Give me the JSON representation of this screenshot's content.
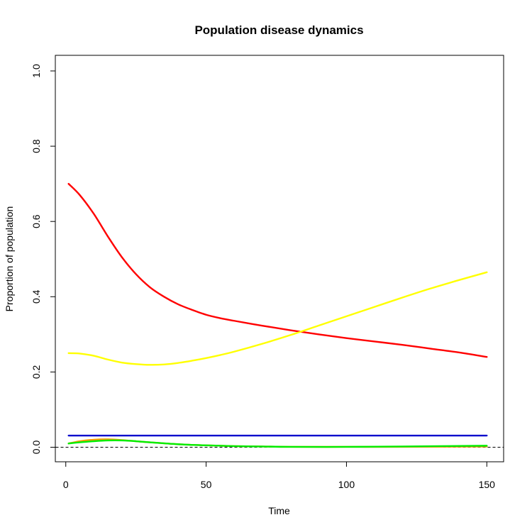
{
  "chart_data": {
    "type": "line",
    "title": "Population disease dynamics",
    "xlabel": "Time",
    "ylabel": "Proportion of population",
    "xlim": [
      1,
      150
    ],
    "ylim": [
      0,
      1.0
    ],
    "x_ticks": [
      0,
      50,
      100,
      150
    ],
    "x_tick_labels": [
      "0",
      "50",
      "100",
      "150"
    ],
    "y_ticks": [
      0.0,
      0.2,
      0.4,
      0.6,
      0.8,
      1.0
    ],
    "y_tick_labels": [
      "0.0",
      "0.2",
      "0.4",
      "0.6",
      "0.8",
      "1.0"
    ],
    "grid": false,
    "reference_line": {
      "y": 0,
      "style": "dashed",
      "color": "#000000"
    },
    "series": [
      {
        "color": "#0000cc",
        "x": [
          1,
          150
        ],
        "y": [
          0.031,
          0.031
        ]
      },
      {
        "color": "#ff0000",
        "x": [
          1,
          5,
          10,
          15,
          20,
          25,
          30,
          35,
          40,
          45,
          50,
          55,
          60,
          70,
          80,
          90,
          100,
          110,
          120,
          130,
          140,
          150
        ],
        "y": [
          0.7,
          0.67,
          0.62,
          0.56,
          0.505,
          0.46,
          0.425,
          0.4,
          0.38,
          0.365,
          0.352,
          0.343,
          0.336,
          0.323,
          0.311,
          0.3,
          0.29,
          0.281,
          0.272,
          0.262,
          0.252,
          0.24
        ]
      },
      {
        "color": "#ffff00",
        "x": [
          1,
          5,
          10,
          15,
          20,
          25,
          30,
          35,
          40,
          45,
          50,
          55,
          60,
          70,
          80,
          90,
          100,
          110,
          120,
          130,
          140,
          150
        ],
        "y": [
          0.25,
          0.249,
          0.243,
          0.233,
          0.225,
          0.221,
          0.219,
          0.22,
          0.224,
          0.23,
          0.237,
          0.245,
          0.254,
          0.275,
          0.298,
          0.323,
          0.348,
          0.373,
          0.398,
          0.422,
          0.444,
          0.465
        ]
      },
      {
        "color": "#ff9900",
        "x": [
          1,
          5,
          10,
          15,
          20,
          25,
          30,
          40,
          50,
          60,
          70,
          80,
          100,
          120,
          150
        ],
        "y": [
          0.01,
          0.016,
          0.02,
          0.021,
          0.019,
          0.016,
          0.013,
          0.008,
          0.005,
          0.003,
          0.002,
          0.001,
          0.001,
          0.001,
          0.002
        ]
      },
      {
        "color": "#00ee00",
        "x": [
          1,
          5,
          10,
          15,
          20,
          25,
          30,
          40,
          50,
          60,
          70,
          80,
          100,
          120,
          150
        ],
        "y": [
          0.01,
          0.013,
          0.016,
          0.018,
          0.018,
          0.016,
          0.013,
          0.008,
          0.005,
          0.003,
          0.002,
          0.001,
          0.001,
          0.002,
          0.004
        ]
      }
    ]
  }
}
